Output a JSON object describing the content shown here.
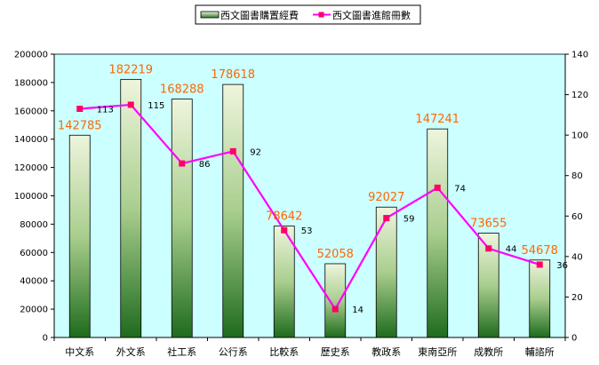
{
  "chart_data": {
    "type": "bar",
    "categories": [
      "中文系",
      "外文系",
      "社工系",
      "公行系",
      "比較系",
      "歷史系",
      "教政系",
      "東南亞所",
      "成教所",
      "輔諮所"
    ],
    "series": [
      {
        "name": "西文圖書購置經費",
        "type": "bar",
        "axis": "left",
        "values": [
          142785,
          182219,
          168288,
          178618,
          78642,
          52058,
          92027,
          147241,
          73655,
          54678
        ]
      },
      {
        "name": "西文圖書進館冊數",
        "type": "line",
        "axis": "right",
        "values": [
          113,
          115,
          86,
          92,
          53,
          14,
          59,
          74,
          44,
          36
        ]
      }
    ],
    "ylim": [
      0,
      200000
    ],
    "yticks": [
      "0",
      "20000",
      "40000",
      "60000",
      "80000",
      "100000",
      "120000",
      "140000",
      "160000",
      "180000",
      "200000"
    ],
    "y2lim": [
      0,
      140
    ],
    "y2ticks": [
      "0",
      "20",
      "40",
      "60",
      "80",
      "100",
      "120",
      "140"
    ],
    "legend_position": "top",
    "colors": {
      "plot_background": "#CCFFFF",
      "bar_top": "#EEF5DD",
      "bar_bottom": "#1E6B1E",
      "line": "#FF00FF",
      "marker": "#FF0066",
      "bar_label": "#FF6600"
    }
  }
}
